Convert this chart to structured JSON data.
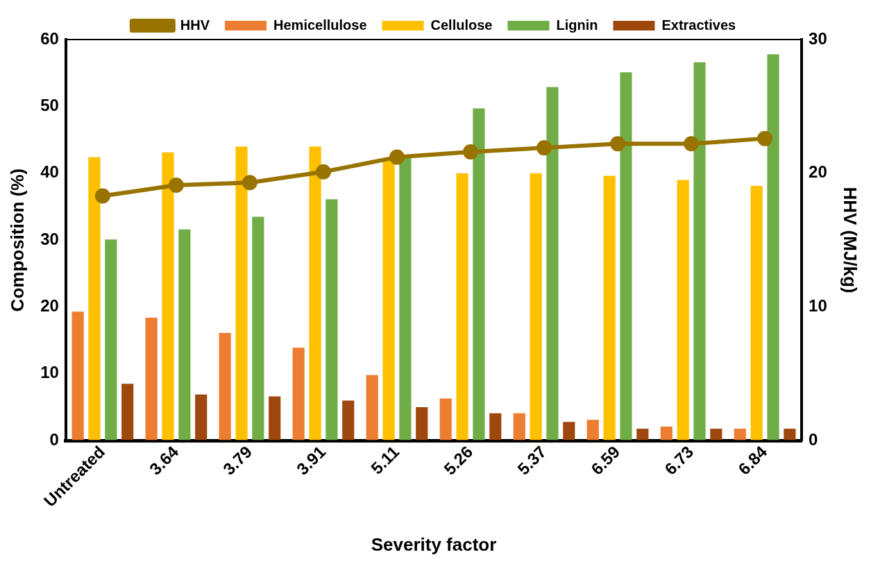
{
  "chart_data": {
    "type": "bar",
    "xlabel": "Severity factor",
    "ylabel": "Composition (%)",
    "y2label": "HHV (MJ/kg)",
    "categories": [
      "Untreated",
      "3.64",
      "3.79",
      "3.91",
      "5.11",
      "5.26",
      "5.37",
      "6.59",
      "6.73",
      "6.84"
    ],
    "series": [
      {
        "name": "Hemicellulose",
        "color": "#ed7d31",
        "values": [
          19.3,
          18.4,
          16.1,
          13.9,
          9.8,
          6.3,
          4.1,
          3.1,
          2.1,
          1.8
        ]
      },
      {
        "name": "Cellulose",
        "color": "#ffc000",
        "values": [
          42.4,
          43.1,
          44.0,
          44.0,
          42.2,
          40.0,
          40.0,
          39.6,
          39.0,
          38.1
        ]
      },
      {
        "name": "Lignin",
        "color": "#70ad47",
        "values": [
          30.1,
          31.6,
          33.5,
          36.1,
          42.4,
          49.7,
          52.9,
          55.1,
          56.6,
          57.8
        ]
      },
      {
        "name": "Extractives",
        "color": "#9e480e",
        "values": [
          8.5,
          6.9,
          6.6,
          6.0,
          5.0,
          4.1,
          2.8,
          1.8,
          1.8,
          1.8
        ]
      },
      {
        "name": "HHV",
        "color": "#997300",
        "type": "line",
        "axis": "y2",
        "marker": "circle",
        "values": [
          18.3,
          19.1,
          19.3,
          20.1,
          21.2,
          21.6,
          21.9,
          22.2,
          22.2,
          22.6
        ]
      }
    ],
    "ylim": [
      0,
      60
    ],
    "yticks": [
      0,
      10,
      20,
      30,
      40,
      50,
      60
    ],
    "y2lim": [
      0,
      30
    ],
    "y2ticks": [
      0,
      10,
      20,
      30
    ],
    "grid": false,
    "legend": "top"
  }
}
